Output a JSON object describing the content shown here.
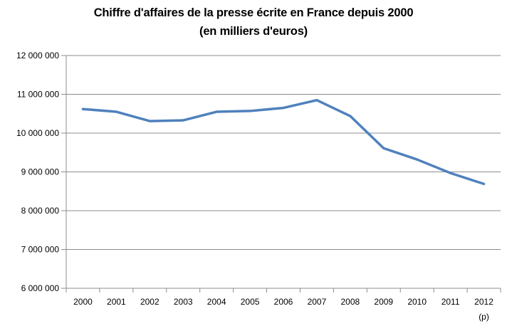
{
  "title": {
    "line1": "Chiffre d'affaires de la presse écrite en France depuis 2000",
    "line2": "(en milliers d'euros)"
  },
  "chart_data": {
    "type": "line",
    "title": "Chiffre d'affaires de la presse écrite en France depuis 2000",
    "subtitle": "(en milliers d'euros)",
    "categories": [
      "2000",
      "2001",
      "2002",
      "2003",
      "2004",
      "2005",
      "2006",
      "2007",
      "2008",
      "2009",
      "2010",
      "2011",
      "2012"
    ],
    "x_note": {
      "category": "2012",
      "label": "(p)"
    },
    "values": [
      10620000,
      10550000,
      10310000,
      10330000,
      10550000,
      10570000,
      10650000,
      10850000,
      10440000,
      9610000,
      9320000,
      8970000,
      8690000
    ],
    "ylim": [
      6000000,
      12000000
    ],
    "y_ticks": [
      {
        "value": 12000000,
        "label": "12 000 000"
      },
      {
        "value": 11000000,
        "label": "11 000 000"
      },
      {
        "value": 10000000,
        "label": "10 000 000"
      },
      {
        "value": 9000000,
        "label": "9 000 000"
      },
      {
        "value": 8000000,
        "label": "8 000 000"
      },
      {
        "value": 7000000,
        "label": "7 000 000"
      },
      {
        "value": 6000000,
        "label": "6 000 000"
      }
    ],
    "xlabel": "",
    "ylabel": "",
    "grid": "horizontal",
    "legend": "none",
    "colors": {
      "series": "#4F81BD",
      "grid": "#8C8C8C",
      "axis": "#8C8C8C",
      "text": "#000000"
    }
  }
}
